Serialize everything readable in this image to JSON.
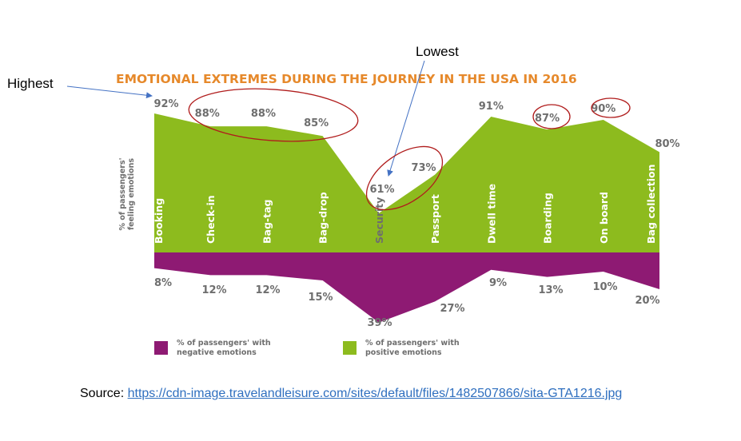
{
  "chart_data": {
    "type": "area",
    "title": "EMOTIONAL EXTREMES DURING THE JOURNEY IN THE USA IN 2016",
    "ylabel": [
      "% of passengers'",
      "feeling emotions"
    ],
    "xlabel": "",
    "categories": [
      "Booking",
      "Check-in",
      "Bag-tag",
      "Bag-drop",
      "Security",
      "Passport",
      "Dwell time",
      "Boarding",
      "On board",
      "Bag collection"
    ],
    "series": [
      {
        "name": "% of passengers' with positive emotions",
        "color": "#8dbb1e",
        "direction": "up",
        "values": [
          92,
          88,
          88,
          85,
          61,
          73,
          91,
          87,
          90,
          80
        ]
      },
      {
        "name": "% of passengers' with negative emotions",
        "color": "#8e1a73",
        "direction": "down",
        "values": [
          8,
          12,
          12,
          15,
          39,
          27,
          9,
          13,
          10,
          20
        ]
      }
    ],
    "legend": {
      "placement": "bottom",
      "items": [
        {
          "line1": "% of passengers' with",
          "line2": "negative emotions",
          "color": "#8e1a73"
        },
        {
          "line1": "% of passengers' with",
          "line2": "positive emotions",
          "color": "#8dbb1e"
        }
      ]
    },
    "value_suffix": "%",
    "grid": false
  },
  "annotations": {
    "highest": {
      "label": "Highest",
      "target_category": "Booking",
      "arrow_color": "#4472c4"
    },
    "lowest": {
      "label": "Lowest",
      "target_category": "Security",
      "arrow_color": "#4472c4"
    },
    "circled_groups": [
      [
        "Check-in",
        "Bag-tag",
        "Bag-drop"
      ],
      [
        "Security",
        "Passport"
      ],
      [
        "Boarding"
      ],
      [
        "On board"
      ]
    ],
    "circle_color": "#b01c1c"
  },
  "source": {
    "label": "Source: ",
    "link_text": "https://cdn-image.travelandleisure.com/sites/default/files/1482507866/sita-GTA1216.jpg"
  }
}
